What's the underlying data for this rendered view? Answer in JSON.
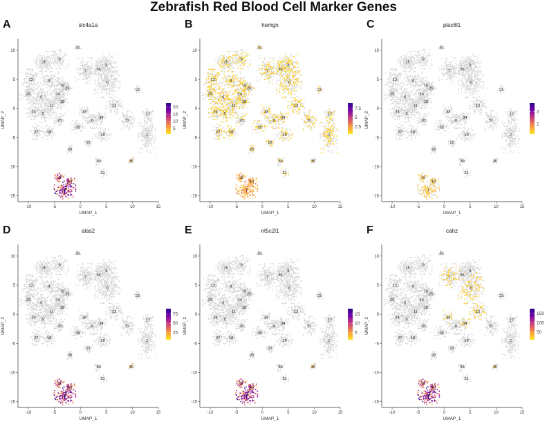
{
  "figure": {
    "title": "Zebrafish Red Blood Cell Marker Genes"
  },
  "colors": {
    "background_cells": "#d3d3d3",
    "colormap": [
      "#fde725",
      "#fca636",
      "#e16462",
      "#b12a90",
      "#6a00a8",
      "#2d0a8c"
    ]
  },
  "chart_data": [
    {
      "type": "scatter",
      "panel": "A",
      "title": "slc4a1a",
      "xlabel": "UMAP_1",
      "ylabel": "UMAP_2",
      "xlim": [
        -12,
        15
      ],
      "ylim": [
        -16,
        12
      ],
      "xticks": [
        -10,
        -5,
        0,
        5,
        10,
        15
      ],
      "yticks": [
        10,
        5,
        0,
        -5,
        -10,
        -15
      ],
      "legend_ticks": [
        20,
        15,
        10,
        5
      ],
      "legend_range": [
        1,
        23
      ],
      "expression": "high",
      "expressing_clusters": [
        "1",
        "19",
        "32"
      ]
    },
    {
      "type": "scatter",
      "panel": "B",
      "title": "hemgn",
      "xlabel": "UMAP_1",
      "ylabel": "UMAP_2",
      "xlim": [
        -12,
        15
      ],
      "ylim": [
        -16,
        12
      ],
      "xticks": [
        -10,
        -5,
        0,
        5,
        10,
        15
      ],
      "yticks": [
        10,
        5,
        0,
        -5,
        -10,
        -15
      ],
      "legend_ticks": [
        7.5,
        5.0,
        2.5
      ],
      "legend_range": [
        0.5,
        9
      ],
      "expression": "broad_low",
      "expressing_clusters": [
        "1",
        "19",
        "32"
      ]
    },
    {
      "type": "scatter",
      "panel": "C",
      "title": "plac8l1",
      "xlabel": "UMAP_1",
      "ylabel": "UMAP_2",
      "xlim": [
        -12,
        15
      ],
      "ylim": [
        -16,
        12
      ],
      "xticks": [
        -10,
        -5,
        0,
        5,
        10,
        15
      ],
      "yticks": [
        10,
        5,
        0,
        -5,
        -10,
        -15
      ],
      "legend_ticks": [
        2,
        1
      ],
      "legend_range": [
        0.2,
        2.7
      ],
      "expression": "faint",
      "expressing_clusters": [
        "1",
        "19",
        "32"
      ]
    },
    {
      "type": "scatter",
      "panel": "D",
      "title": "alas2",
      "xlabel": "UMAP_1",
      "ylabel": "UMAP_2",
      "xlim": [
        -12,
        15
      ],
      "ylim": [
        -16,
        12
      ],
      "xticks": [
        -10,
        -5,
        0,
        5,
        10,
        15
      ],
      "yticks": [
        10,
        5,
        0,
        -5,
        -10,
        -15
      ],
      "legend_ticks": [
        75,
        50,
        25
      ],
      "legend_range": [
        5,
        90
      ],
      "expression": "high",
      "expressing_clusters": [
        "1",
        "19",
        "32"
      ]
    },
    {
      "type": "scatter",
      "panel": "E",
      "title": "nt5c2l1",
      "xlabel": "UMAP_1",
      "ylabel": "UMAP_2",
      "xlim": [
        -12,
        15
      ],
      "ylim": [
        -16,
        12
      ],
      "xticks": [
        -10,
        -5,
        0,
        5,
        10,
        15
      ],
      "yticks": [
        10,
        5,
        0,
        -5,
        -10,
        -15
      ],
      "legend_ticks": [
        15,
        10,
        5
      ],
      "legend_range": [
        1,
        18
      ],
      "expression": "high",
      "expressing_clusters": [
        "1",
        "19",
        "32"
      ]
    },
    {
      "type": "scatter",
      "panel": "F",
      "title": "cahz",
      "xlabel": "UMAP_1",
      "ylabel": "UMAP_2",
      "xlim": [
        -12,
        15
      ],
      "ylim": [
        -16,
        12
      ],
      "xticks": [
        -10,
        -5,
        0,
        5,
        10,
        15
      ],
      "yticks": [
        10,
        5,
        0,
        -5,
        -10,
        -15
      ],
      "legend_ticks": [
        150,
        100,
        50
      ],
      "legend_range": [
        10,
        175
      ],
      "expression": "high",
      "expressing_clusters": [
        "1",
        "19",
        "32"
      ]
    }
  ],
  "clusters": [
    {
      "label": "31",
      "x": -0.5,
      "y": 10.5,
      "rx": 0.5,
      "ry": 0.5
    },
    {
      "label": "15",
      "x": -7.0,
      "y": 8.0,
      "rx": 1.8,
      "ry": 1.6
    },
    {
      "label": "9",
      "x": -4.0,
      "y": 8.5,
      "rx": 1.5,
      "ry": 1.5
    },
    {
      "label": "13",
      "x": -9.5,
      "y": 5.0,
      "rx": 1.6,
      "ry": 1.6
    },
    {
      "label": "4",
      "x": -6.0,
      "y": 4.8,
      "rx": 1.6,
      "ry": 1.5
    },
    {
      "label": "16",
      "x": -3.5,
      "y": 4.0,
      "rx": 1.3,
      "ry": 1.3
    },
    {
      "label": "26",
      "x": -2.5,
      "y": 3.5,
      "rx": 1.0,
      "ry": 1.0
    },
    {
      "label": "29",
      "x": -10.0,
      "y": 2.5,
      "rx": 1.4,
      "ry": 1.5
    },
    {
      "label": "6",
      "x": -7.5,
      "y": 2.0,
      "rx": 1.7,
      "ry": 1.6
    },
    {
      "label": "14",
      "x": -4.3,
      "y": 2.5,
      "rx": 1.4,
      "ry": 1.4
    },
    {
      "label": "18",
      "x": -3.5,
      "y": 1.2,
      "rx": 1.1,
      "ry": 1.1
    },
    {
      "label": "11",
      "x": -5.5,
      "y": 0.5,
      "rx": 1.6,
      "ry": 1.5
    },
    {
      "label": "24",
      "x": -9.0,
      "y": -0.5,
      "rx": 1.3,
      "ry": 1.3
    },
    {
      "label": "5",
      "x": -7.2,
      "y": -0.8,
      "rx": 1.5,
      "ry": 1.4
    },
    {
      "label": "28",
      "x": -4.0,
      "y": -2.0,
      "rx": 1.1,
      "ry": 1.0
    },
    {
      "label": "27",
      "x": -8.5,
      "y": -4.0,
      "rx": 1.2,
      "ry": 1.2
    },
    {
      "label": "18",
      "x": -6.0,
      "y": -4.0,
      "rx": 1.2,
      "ry": 1.2
    },
    {
      "label": "7",
      "x": 1.0,
      "y": 6.5,
      "rx": 1.8,
      "ry": 2.0
    },
    {
      "label": "35",
      "x": 3.5,
      "y": 6.8,
      "rx": 1.2,
      "ry": 1.2
    },
    {
      "label": "3",
      "x": 5.0,
      "y": 7.5,
      "rx": 1.8,
      "ry": 1.8
    },
    {
      "label": "0",
      "x": 5.2,
      "y": 4.5,
      "rx": 2.2,
      "ry": 2.4
    },
    {
      "label": "33",
      "x": 0.8,
      "y": -0.5,
      "rx": 1.0,
      "ry": 1.0
    },
    {
      "label": "12",
      "x": 6.5,
      "y": 0.5,
      "rx": 1.5,
      "ry": 1.3
    },
    {
      "label": "8",
      "x": 2.3,
      "y": -2.0,
      "rx": 1.6,
      "ry": 1.3
    },
    {
      "label": "34",
      "x": 4.0,
      "y": -1.5,
      "rx": 1.0,
      "ry": 1.0
    },
    {
      "label": "25",
      "x": -0.5,
      "y": -3.2,
      "rx": 1.3,
      "ry": 1.0
    },
    {
      "label": "10",
      "x": 4.3,
      "y": -4.5,
      "rx": 1.5,
      "ry": 1.1
    },
    {
      "label": "22",
      "x": 1.5,
      "y": -5.8,
      "rx": 0.8,
      "ry": 0.7
    },
    {
      "label": "20",
      "x": -2.0,
      "y": -7.0,
      "rx": 0.7,
      "ry": 0.7
    },
    {
      "label": "30",
      "x": 3.5,
      "y": -9.0,
      "rx": 0.7,
      "ry": 0.7
    },
    {
      "label": "21",
      "x": 4.3,
      "y": -11.0,
      "rx": 0.7,
      "ry": 0.7
    },
    {
      "label": "36",
      "x": 9.8,
      "y": -9.0,
      "rx": 0.5,
      "ry": 0.5
    },
    {
      "label": "23",
      "x": 11.0,
      "y": 3.2,
      "rx": 0.7,
      "ry": 0.6
    },
    {
      "label": "37",
      "x": 9.0,
      "y": -2.0,
      "rx": 1.3,
      "ry": 1.5
    },
    {
      "label": "17",
      "x": 13.0,
      "y": -1.0,
      "rx": 1.0,
      "ry": 1.1
    },
    {
      "label": "2",
      "x": 12.8,
      "y": -4.5,
      "rx": 1.5,
      "ry": 2.8
    },
    {
      "label": "32",
      "x": -4.0,
      "y": -11.8,
      "rx": 0.8,
      "ry": 0.7
    },
    {
      "label": "19",
      "x": -2.0,
      "y": -12.5,
      "rx": 0.9,
      "ry": 0.8
    },
    {
      "label": "1",
      "x": -3.0,
      "y": -14.0,
      "rx": 1.9,
      "ry": 1.4
    }
  ]
}
